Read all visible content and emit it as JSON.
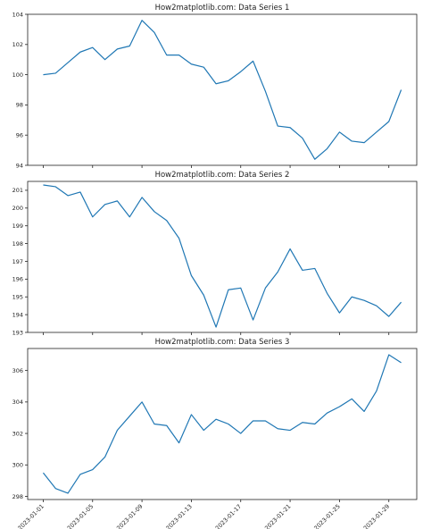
{
  "chart_data": [
    {
      "type": "line",
      "title": "How2matplotlib.com: Data Series 1",
      "xlabel": "",
      "ylabel": "",
      "color": "#1f77b4",
      "grid": false,
      "ylim": [
        94,
        104
      ],
      "yticks": [
        94,
        96,
        98,
        100,
        102,
        104
      ],
      "x": [
        "2023-01-01",
        "2023-01-02",
        "2023-01-03",
        "2023-01-04",
        "2023-01-05",
        "2023-01-06",
        "2023-01-07",
        "2023-01-08",
        "2023-01-09",
        "2023-01-10",
        "2023-01-11",
        "2023-01-12",
        "2023-01-13",
        "2023-01-14",
        "2023-01-15",
        "2023-01-16",
        "2023-01-17",
        "2023-01-18",
        "2023-01-19",
        "2023-01-20",
        "2023-01-21",
        "2023-01-22",
        "2023-01-23",
        "2023-01-24",
        "2023-01-25",
        "2023-01-26",
        "2023-01-27",
        "2023-01-28",
        "2023-01-29",
        "2023-01-30"
      ],
      "values": [
        100.0,
        100.1,
        100.8,
        101.5,
        101.8,
        101.0,
        101.7,
        101.9,
        103.6,
        102.8,
        101.3,
        101.3,
        100.7,
        100.5,
        99.4,
        99.6,
        100.2,
        100.9,
        98.9,
        96.6,
        96.5,
        95.8,
        94.4,
        95.1,
        96.2,
        95.6,
        95.5,
        96.2,
        96.9,
        99.0
      ],
      "x_tick_labels_visible": false
    },
    {
      "type": "line",
      "title": "How2matplotlib.com: Data Series 2",
      "xlabel": "",
      "ylabel": "",
      "color": "#1f77b4",
      "grid": false,
      "ylim": [
        193,
        201.5
      ],
      "yticks": [
        193,
        194,
        195,
        196,
        197,
        198,
        199,
        200,
        201
      ],
      "x": [
        "2023-01-01",
        "2023-01-02",
        "2023-01-03",
        "2023-01-04",
        "2023-01-05",
        "2023-01-06",
        "2023-01-07",
        "2023-01-08",
        "2023-01-09",
        "2023-01-10",
        "2023-01-11",
        "2023-01-12",
        "2023-01-13",
        "2023-01-14",
        "2023-01-15",
        "2023-01-16",
        "2023-01-17",
        "2023-01-18",
        "2023-01-19",
        "2023-01-20",
        "2023-01-21",
        "2023-01-22",
        "2023-01-23",
        "2023-01-24",
        "2023-01-25",
        "2023-01-26",
        "2023-01-27",
        "2023-01-28",
        "2023-01-29",
        "2023-01-30"
      ],
      "values": [
        201.3,
        201.2,
        200.7,
        200.9,
        199.5,
        200.2,
        200.4,
        199.5,
        200.6,
        199.8,
        199.3,
        198.3,
        196.2,
        195.1,
        193.3,
        195.4,
        195.5,
        193.7,
        195.5,
        196.4,
        197.7,
        196.5,
        196.6,
        195.2,
        194.1,
        195.0,
        194.8,
        194.5,
        193.9,
        194.7
      ],
      "x_tick_labels_visible": false
    },
    {
      "type": "line",
      "title": "How2matplotlib.com: Data Series 3",
      "xlabel": "",
      "ylabel": "",
      "color": "#1f77b4",
      "grid": false,
      "ylim": [
        297.8,
        307.4
      ],
      "yticks": [
        298,
        300,
        302,
        304,
        306
      ],
      "x": [
        "2023-01-01",
        "2023-01-02",
        "2023-01-03",
        "2023-01-04",
        "2023-01-05",
        "2023-01-06",
        "2023-01-07",
        "2023-01-08",
        "2023-01-09",
        "2023-01-10",
        "2023-01-11",
        "2023-01-12",
        "2023-01-13",
        "2023-01-14",
        "2023-01-15",
        "2023-01-16",
        "2023-01-17",
        "2023-01-18",
        "2023-01-19",
        "2023-01-20",
        "2023-01-21",
        "2023-01-22",
        "2023-01-23",
        "2023-01-24",
        "2023-01-25",
        "2023-01-26",
        "2023-01-27",
        "2023-01-28",
        "2023-01-29",
        "2023-01-30"
      ],
      "values": [
        299.5,
        298.5,
        298.2,
        299.4,
        299.7,
        300.5,
        302.2,
        303.1,
        304.0,
        302.6,
        302.5,
        301.4,
        303.2,
        302.2,
        302.9,
        302.6,
        302.0,
        302.8,
        302.8,
        302.3,
        302.2,
        302.7,
        302.6,
        303.3,
        303.7,
        304.2,
        303.4,
        304.7,
        307.0,
        306.5
      ],
      "x_tick_labels_visible": true
    }
  ],
  "xaxis": {
    "date_ticks": [
      "2023-01-01",
      "2023-01-05",
      "2023-01-09",
      "2023-01-13",
      "2023-01-17",
      "2023-01-21",
      "2023-01-25",
      "2023-01-29"
    ],
    "tick_label_rotation_deg": 45
  }
}
